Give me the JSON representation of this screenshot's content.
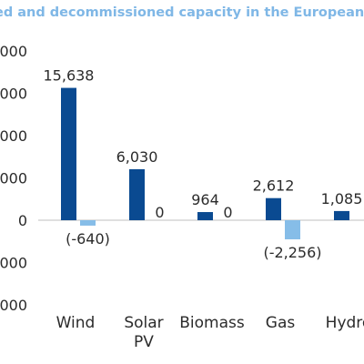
{
  "chart_data": {
    "type": "bar",
    "title": "ed and decommissioned capacity in the European Un",
    "categories": [
      [
        "Wind"
      ],
      [
        "Solar",
        "PV"
      ],
      [
        "Biomass"
      ],
      [
        "Gas"
      ],
      [
        "Hydro"
      ]
    ],
    "series": [
      {
        "values": [
          15638,
          6030,
          964,
          2612,
          1085
        ],
        "labels": [
          "15,638",
          "6,030",
          "964",
          "2,612",
          "1,085"
        ],
        "color": "#0a4a91"
      },
      {
        "values": [
          -640,
          0,
          0,
          -2256,
          null
        ],
        "labels": [
          "(-640)",
          "0",
          "0",
          "(-2,256)",
          ""
        ],
        "color": "#86bde8"
      }
    ],
    "y_tick_labels": [
      "000",
      "000",
      "000",
      "000",
      "0",
      "000",
      "000"
    ],
    "ylim": [
      -20000,
      20000
    ],
    "y_ticks": [
      20000,
      15000,
      10000,
      5000,
      0,
      -5000,
      -10000
    ],
    "grid": false,
    "legend": "none"
  }
}
